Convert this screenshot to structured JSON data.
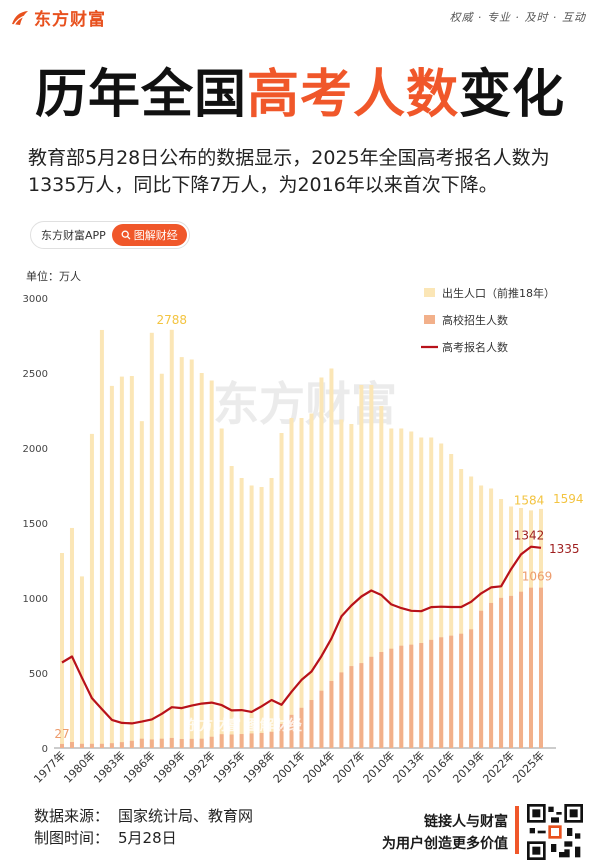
{
  "brand": {
    "logo_text": "东方财富",
    "slogan": "权威 · 专业 · 及时 · 互动"
  },
  "title": {
    "part1": "历年全国",
    "part2": "高考人数",
    "part3": "变化"
  },
  "description": "教育部5月28日公布的数据显示，2025年全国高考报名人数为1335万人，同比下降7万人，为2016年以来首次下降。",
  "chips": {
    "app": "东方财富APP",
    "tag": "图解财经"
  },
  "watermark": "东方财富",
  "watermark_small": "东方财富 图解财经",
  "colors": {
    "births": "#fbe6b6",
    "admissions": "#f2b08a",
    "applicants": "#b8121a",
    "label_yellow": "#f3c441",
    "label_orange": "#ed9c6d",
    "label_red": "#9e1d1d",
    "accent": "#f0572a"
  },
  "chart_data": {
    "type": "bar",
    "unit_label": "单位：万人",
    "ylim": [
      0,
      3000
    ],
    "y_ticks": [
      0,
      500,
      1000,
      1500,
      2000,
      2500,
      3000
    ],
    "x_tick_labels": [
      "1977年",
      "1980年",
      "1983年",
      "1986年",
      "1989年",
      "1992年",
      "1995年",
      "1998年",
      "2001年",
      "2004年",
      "2007年",
      "2010年",
      "2013年",
      "2016年",
      "2019年",
      "2022年",
      "2025年"
    ],
    "years": [
      1977,
      1978,
      1979,
      1980,
      1981,
      1982,
      1983,
      1984,
      1985,
      1986,
      1987,
      1988,
      1989,
      1990,
      1991,
      1992,
      1993,
      1994,
      1995,
      1996,
      1997,
      1998,
      1999,
      2000,
      2001,
      2002,
      2003,
      2004,
      2005,
      2006,
      2007,
      2008,
      2009,
      2010,
      2011,
      2012,
      2013,
      2014,
      2015,
      2016,
      2017,
      2018,
      2019,
      2020,
      2021,
      2022,
      2023,
      2024,
      2025
    ],
    "series": [
      {
        "name": "出生人口（前推18年）",
        "kind": "bar",
        "values": [
          1300,
          1467,
          1144,
          2094,
          2787,
          2414,
          2476,
          2480,
          2179,
          2768,
          2495,
          2788,
          2606,
          2590,
          2500,
          2450,
          2130,
          1880,
          1800,
          1750,
          1740,
          1800,
          2100,
          2200,
          2200,
          2230,
          2470,
          2530,
          2190,
          2160,
          2420,
          2420,
          2280,
          2130,
          2130,
          2110,
          2070,
          2070,
          2030,
          1960,
          1860,
          1810,
          1750,
          1730,
          1660,
          1610,
          1600,
          1584,
          1594
        ]
      },
      {
        "name": "高校招生人数",
        "kind": "bar",
        "values": [
          27,
          40,
          28,
          28,
          28,
          32,
          39,
          48,
          62,
          57,
          62,
          67,
          60,
          61,
          62,
          75,
          92,
          90,
          93,
          97,
          100,
          108,
          160,
          221,
          268,
          320,
          382,
          447,
          504,
          546,
          566,
          608,
          640,
          662,
          682,
          689,
          700,
          721,
          738,
          749,
          762,
          791,
          915,
          967,
          1001,
          1014,
          1042,
          1069,
          1069
        ]
      },
      {
        "name": "高考报名人数",
        "kind": "line",
        "values": [
          570,
          610,
          468,
          333,
          259,
          187,
          167,
          164,
          176,
          191,
          228,
          272,
          266,
          283,
          296,
          303,
          286,
          251,
          253,
          241,
          278,
          320,
          288,
          375,
          454,
          510,
          613,
          729,
          877,
          950,
          1010,
          1050,
          1020,
          957,
          933,
          915,
          912,
          939,
          942,
          940,
          940,
          975,
          1031,
          1071,
          1078,
          1193,
          1291,
          1342,
          1335
        ]
      }
    ],
    "annotations": [
      {
        "text": "2788",
        "series": "出生人口（前推18年）",
        "year": 1988
      },
      {
        "text": "27",
        "series": "高校招生人数",
        "year": 1977
      },
      {
        "text": "1584",
        "series": "出生人口（前推18年）",
        "year": 2024
      },
      {
        "text": "1594",
        "series": "出生人口（前推18年）",
        "year": 2025
      },
      {
        "text": "1342",
        "series": "高考报名人数",
        "year": 2024
      },
      {
        "text": "1335",
        "series": "高考报名人数",
        "year": 2025
      },
      {
        "text": "1069",
        "series": "高校招生人数",
        "year": 2025
      }
    ]
  },
  "footer": {
    "source_label": "数据来源：",
    "source": "国家统计局、教育网",
    "date_label": "制图时间：",
    "date": "5月28日",
    "tagline1": "链接人与财富",
    "tagline2": "为用户创造更多价值"
  }
}
